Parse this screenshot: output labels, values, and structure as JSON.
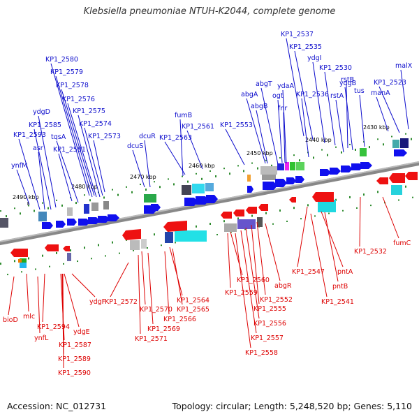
{
  "title": "Klebsiella pneumoniae NTUH-K2044, complete genome",
  "footer": {
    "accession": "Accession: NC_012731",
    "meta": "Topology: circular; Length: 5,248,520 bp; Genes: 5,110"
  },
  "scale_ticks": [
    "2490 kbp",
    "2480 kbp",
    "2470 kbp",
    "2460 kbp",
    "2450 kbp",
    "2440 kbp",
    "2430 kbp"
  ],
  "top_labels": [
    "KP1_2537",
    "KP1_2535",
    "ydgI",
    "KP1_2530",
    "rstB",
    "malX",
    "KP1_2580",
    "KP1_2579",
    "ydgB",
    "KP1_2523",
    "KP1_2578",
    "abgT",
    "ydaA",
    "manA",
    "tus",
    "rstA",
    "KP1_2576",
    "abgA",
    "ogt",
    "KP1_2536",
    "ydgD",
    "KP1_2575",
    "abgB",
    "fnr",
    "fumB",
    "KP1_2585",
    "KP1_2574",
    "KP1_2553",
    "KP1_2561",
    "KP1_2593",
    "tqsA",
    "KP1_2573",
    "dcuR",
    "KP1_2563",
    "asr",
    "KP1_2581",
    "dcuS",
    "ynfM"
  ],
  "bottom_labels": [
    "KP1_2532",
    "fumC",
    "KP1_2547",
    "pntA",
    "pntB",
    "KP1_2541",
    "KP1_2560",
    "abgR",
    "KP1_2559",
    "KP1_2552",
    "KP1_2555",
    "KP1_2556",
    "KP1_2557",
    "KP1_2558",
    "KP1_2572",
    "KP1_2564",
    "KP1_2570",
    "KP1_2565",
    "KP1_2566",
    "KP1_2569",
    "KP1_2571",
    "ydgF",
    "bioD",
    "mlc",
    "KP1_2594",
    "ydgE",
    "ynfL",
    "KP1_2587",
    "KP1_2589",
    "KP1_2590"
  ]
}
